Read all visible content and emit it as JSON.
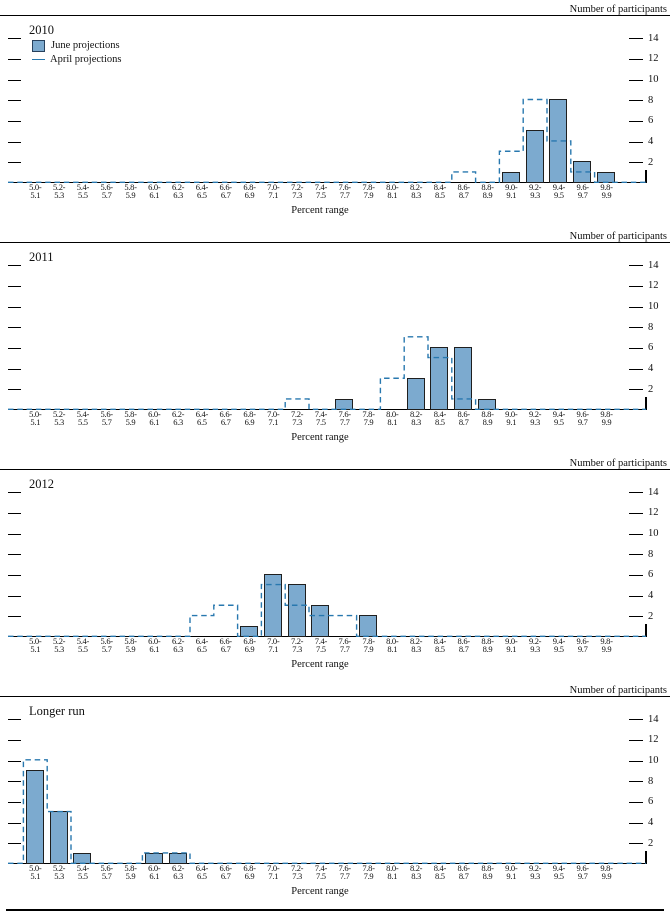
{
  "meta": {
    "y_axis_label": "Number of participants",
    "x_axis_label": "Percent range",
    "legend": {
      "june": "June projections",
      "april": "April projections"
    },
    "y_ticks": [
      2,
      4,
      6,
      8,
      10,
      12,
      14
    ],
    "y_max": 16,
    "colors": {
      "bar_fill": "#7caacf",
      "bar_border": "#1f1f1f",
      "april_line": "#2878af",
      "axis": "#000000"
    },
    "categories": [
      "5.0-5.1",
      "5.2-5.3",
      "5.4-5.5",
      "5.6-5.7",
      "5.8-5.9",
      "6.0-6.1",
      "6.2-6.3",
      "6.4-6.5",
      "6.6-6.7",
      "6.8-6.9",
      "7.0-7.1",
      "7.2-7.3",
      "7.4-7.5",
      "7.6-7.7",
      "7.8-7.9",
      "8.0-8.1",
      "8.2-8.3",
      "8.4-8.5",
      "8.6-8.7",
      "8.8-8.9",
      "9.0-9.1",
      "9.2-9.3",
      "9.4-9.5",
      "9.6-9.7",
      "9.8-9.9"
    ]
  },
  "chart_data": [
    {
      "type": "bar",
      "title": "2010",
      "xlabel": "Percent range",
      "ylabel": "Number of participants",
      "ylim": [
        0,
        16
      ],
      "legend_position": "top-left",
      "grid": false,
      "series": [
        {
          "name": "June projections",
          "style": "filled-bar",
          "values": [
            0,
            0,
            0,
            0,
            0,
            0,
            0,
            0,
            0,
            0,
            0,
            0,
            0,
            0,
            0,
            0,
            0,
            0,
            0,
            0,
            1,
            5,
            8,
            2,
            1
          ]
        },
        {
          "name": "April projections",
          "style": "dashed-step-outline",
          "values": [
            0,
            0,
            0,
            0,
            0,
            0,
            0,
            0,
            0,
            0,
            0,
            0,
            0,
            0,
            0,
            0,
            0,
            0,
            1,
            0,
            3,
            8,
            4,
            1,
            0
          ]
        }
      ]
    },
    {
      "type": "bar",
      "title": "2011",
      "xlabel": "Percent range",
      "ylabel": "Number of participants",
      "ylim": [
        0,
        16
      ],
      "grid": false,
      "series": [
        {
          "name": "June projections",
          "style": "filled-bar",
          "values": [
            0,
            0,
            0,
            0,
            0,
            0,
            0,
            0,
            0,
            0,
            0,
            0,
            0,
            1,
            0,
            0,
            3,
            6,
            6,
            1,
            0,
            0,
            0,
            0,
            0
          ]
        },
        {
          "name": "April projections",
          "style": "dashed-step-outline",
          "values": [
            0,
            0,
            0,
            0,
            0,
            0,
            0,
            0,
            0,
            0,
            0,
            1,
            0,
            0,
            0,
            3,
            7,
            5,
            1,
            0,
            0,
            0,
            0,
            0,
            0
          ]
        }
      ]
    },
    {
      "type": "bar",
      "title": "2012",
      "xlabel": "Percent range",
      "ylabel": "Number of participants",
      "ylim": [
        0,
        16
      ],
      "grid": false,
      "series": [
        {
          "name": "June projections",
          "style": "filled-bar",
          "values": [
            0,
            0,
            0,
            0,
            0,
            0,
            0,
            0,
            0,
            1,
            6,
            5,
            3,
            0,
            2,
            0,
            0,
            0,
            0,
            0,
            0,
            0,
            0,
            0,
            0
          ]
        },
        {
          "name": "April projections",
          "style": "dashed-step-outline",
          "values": [
            0,
            0,
            0,
            0,
            0,
            0,
            0,
            2,
            3,
            0,
            5,
            3,
            2,
            2,
            0,
            0,
            0,
            0,
            0,
            0,
            0,
            0,
            0,
            0,
            0
          ]
        }
      ]
    },
    {
      "type": "bar",
      "title": "Longer run",
      "xlabel": "Percent range",
      "ylabel": "Number of participants",
      "ylim": [
        0,
        16
      ],
      "grid": false,
      "series": [
        {
          "name": "June projections",
          "style": "filled-bar",
          "values": [
            9,
            5,
            1,
            0,
            0,
            1,
            1,
            0,
            0,
            0,
            0,
            0,
            0,
            0,
            0,
            0,
            0,
            0,
            0,
            0,
            0,
            0,
            0,
            0,
            0
          ]
        },
        {
          "name": "April projections",
          "style": "dashed-step-outline",
          "values": [
            10,
            5,
            0,
            0,
            0,
            1,
            1,
            0,
            0,
            0,
            0,
            0,
            0,
            0,
            0,
            0,
            0,
            0,
            0,
            0,
            0,
            0,
            0,
            0,
            0
          ]
        }
      ]
    }
  ]
}
